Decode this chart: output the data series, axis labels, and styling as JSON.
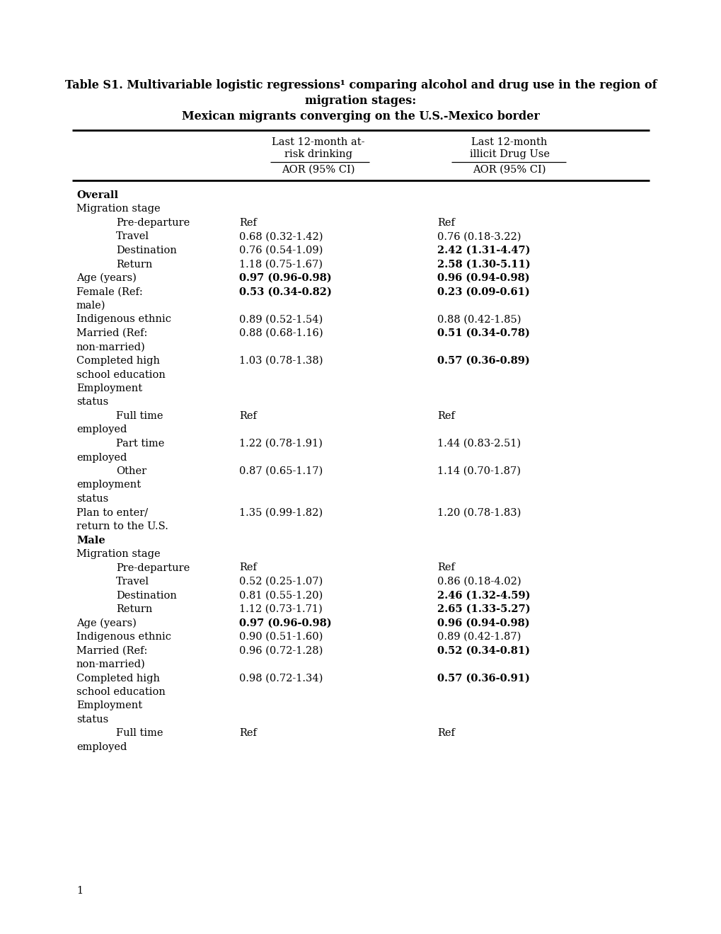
{
  "title_line1": "Table S1. Multivariable logistic regressions¹ comparing alcohol and drug use in the region of",
  "title_line2": "migration stages:",
  "title_line3": "Mexican migrants converging on the U.S.-Mexico border",
  "col_header1_line1": "Last 12-month at-",
  "col_header1_line2": "risk drinking",
  "col_header1_line3": "AOR (95% CI)",
  "col_header2_line1": "Last 12-month",
  "col_header2_line2": "illicit Drug Use",
  "col_header2_line3": "AOR (95% CI)",
  "rows": [
    {
      "label": "Overall",
      "indent": 0,
      "bold": true,
      "col1": "",
      "col1_bold": false,
      "col2": "",
      "col2_bold": false
    },
    {
      "label": "Migration stage",
      "indent": 0,
      "bold": false,
      "col1": "",
      "col1_bold": false,
      "col2": "",
      "col2_bold": false
    },
    {
      "label": "Pre-departure",
      "indent": 2,
      "bold": false,
      "col1": "Ref",
      "col1_bold": false,
      "col2": "Ref",
      "col2_bold": false
    },
    {
      "label": "Travel",
      "indent": 2,
      "bold": false,
      "col1": "0.68 (0.32-1.42)",
      "col1_bold": false,
      "col2": "0.76 (0.18-3.22)",
      "col2_bold": false
    },
    {
      "label": "Destination",
      "indent": 2,
      "bold": false,
      "col1": "0.76 (0.54-1.09)",
      "col1_bold": false,
      "col2": "2.42 (1.31-4.47)",
      "col2_bold": true
    },
    {
      "label": "Return",
      "indent": 2,
      "bold": false,
      "col1": "1.18 (0.75-1.67)",
      "col1_bold": false,
      "col2": "2.58 (1.30-5.11)",
      "col2_bold": true
    },
    {
      "label": "Age (years)",
      "indent": 0,
      "bold": false,
      "col1": "0.97 (0.96-0.98)",
      "col1_bold": true,
      "col2": "0.96 (0.94-0.98)",
      "col2_bold": true
    },
    {
      "label": "Female (Ref:",
      "indent": 0,
      "bold": false,
      "col1": "0.53 (0.34-0.82)",
      "col1_bold": true,
      "col2": "0.23 (0.09-0.61)",
      "col2_bold": true
    },
    {
      "label": "male)",
      "indent": 0,
      "bold": false,
      "col1": "",
      "col1_bold": false,
      "col2": "",
      "col2_bold": false
    },
    {
      "label": "Indigenous ethnic",
      "indent": 0,
      "bold": false,
      "col1": "0.89 (0.52-1.54)",
      "col1_bold": false,
      "col2": "0.88 (0.42-1.85)",
      "col2_bold": false
    },
    {
      "label": "Married (Ref:",
      "indent": 0,
      "bold": false,
      "col1": "0.88 (0.68-1.16)",
      "col1_bold": false,
      "col2": "0.51 (0.34-0.78)",
      "col2_bold": true
    },
    {
      "label": "non-married)",
      "indent": 0,
      "bold": false,
      "col1": "",
      "col1_bold": false,
      "col2": "",
      "col2_bold": false
    },
    {
      "label": "Completed high",
      "indent": 0,
      "bold": false,
      "col1": "1.03 (0.78-1.38)",
      "col1_bold": false,
      "col2": "0.57 (0.36-0.89)",
      "col2_bold": true
    },
    {
      "label": "school education",
      "indent": 0,
      "bold": false,
      "col1": "",
      "col1_bold": false,
      "col2": "",
      "col2_bold": false
    },
    {
      "label": "Employment",
      "indent": 0,
      "bold": false,
      "col1": "",
      "col1_bold": false,
      "col2": "",
      "col2_bold": false
    },
    {
      "label": "status",
      "indent": 0,
      "bold": false,
      "col1": "",
      "col1_bold": false,
      "col2": "",
      "col2_bold": false
    },
    {
      "label": "Full time",
      "indent": 2,
      "bold": false,
      "col1": "Ref",
      "col1_bold": false,
      "col2": "Ref",
      "col2_bold": false
    },
    {
      "label": "employed",
      "indent": 0,
      "bold": false,
      "col1": "",
      "col1_bold": false,
      "col2": "",
      "col2_bold": false
    },
    {
      "label": "Part time",
      "indent": 2,
      "bold": false,
      "col1": "1.22 (0.78-1.91)",
      "col1_bold": false,
      "col2": "1.44 (0.83-2.51)",
      "col2_bold": false
    },
    {
      "label": "employed",
      "indent": 0,
      "bold": false,
      "col1": "",
      "col1_bold": false,
      "col2": "",
      "col2_bold": false
    },
    {
      "label": "Other",
      "indent": 2,
      "bold": false,
      "col1": "0.87 (0.65-1.17)",
      "col1_bold": false,
      "col2": "1.14 (0.70-1.87)",
      "col2_bold": false
    },
    {
      "label": "employment",
      "indent": 0,
      "bold": false,
      "col1": "",
      "col1_bold": false,
      "col2": "",
      "col2_bold": false
    },
    {
      "label": "status",
      "indent": 0,
      "bold": false,
      "col1": "",
      "col1_bold": false,
      "col2": "",
      "col2_bold": false
    },
    {
      "label": "Plan to enter/",
      "indent": 0,
      "bold": false,
      "col1": "1.35 (0.99-1.82)",
      "col1_bold": false,
      "col2": "1.20 (0.78-1.83)",
      "col2_bold": false
    },
    {
      "label": "return to the U.S.",
      "indent": 0,
      "bold": false,
      "col1": "",
      "col1_bold": false,
      "col2": "",
      "col2_bold": false
    },
    {
      "label": "Male",
      "indent": 0,
      "bold": true,
      "col1": "",
      "col1_bold": false,
      "col2": "",
      "col2_bold": false
    },
    {
      "label": "Migration stage",
      "indent": 0,
      "bold": false,
      "col1": "",
      "col1_bold": false,
      "col2": "",
      "col2_bold": false
    },
    {
      "label": "Pre-departure",
      "indent": 2,
      "bold": false,
      "col1": "Ref",
      "col1_bold": false,
      "col2": "Ref",
      "col2_bold": false
    },
    {
      "label": "Travel",
      "indent": 2,
      "bold": false,
      "col1": "0.52 (0.25-1.07)",
      "col1_bold": false,
      "col2": "0.86 (0.18-4.02)",
      "col2_bold": false
    },
    {
      "label": "Destination",
      "indent": 2,
      "bold": false,
      "col1": "0.81 (0.55-1.20)",
      "col1_bold": false,
      "col2": "2.46 (1.32-4.59)",
      "col2_bold": true
    },
    {
      "label": "Return",
      "indent": 2,
      "bold": false,
      "col1": "1.12 (0.73-1.71)",
      "col1_bold": false,
      "col2": "2.65 (1.33-5.27)",
      "col2_bold": true
    },
    {
      "label": "Age (years)",
      "indent": 0,
      "bold": false,
      "col1": "0.97 (0.96-0.98)",
      "col1_bold": true,
      "col2": "0.96 (0.94-0.98)",
      "col2_bold": true
    },
    {
      "label": "Indigenous ethnic",
      "indent": 0,
      "bold": false,
      "col1": "0.90 (0.51-1.60)",
      "col1_bold": false,
      "col2": "0.89 (0.42-1.87)",
      "col2_bold": false
    },
    {
      "label": "Married (Ref:",
      "indent": 0,
      "bold": false,
      "col1": "0.96 (0.72-1.28)",
      "col1_bold": false,
      "col2": "0.52 (0.34-0.81)",
      "col2_bold": true
    },
    {
      "label": "non-married)",
      "indent": 0,
      "bold": false,
      "col1": "",
      "col1_bold": false,
      "col2": "",
      "col2_bold": false
    },
    {
      "label": "Completed high",
      "indent": 0,
      "bold": false,
      "col1": "0.98 (0.72-1.34)",
      "col1_bold": false,
      "col2": "0.57 (0.36-0.91)",
      "col2_bold": true
    },
    {
      "label": "school education",
      "indent": 0,
      "bold": false,
      "col1": "",
      "col1_bold": false,
      "col2": "",
      "col2_bold": false
    },
    {
      "label": "Employment",
      "indent": 0,
      "bold": false,
      "col1": "",
      "col1_bold": false,
      "col2": "",
      "col2_bold": false
    },
    {
      "label": "status",
      "indent": 0,
      "bold": false,
      "col1": "",
      "col1_bold": false,
      "col2": "",
      "col2_bold": false
    },
    {
      "label": "Full time",
      "indent": 2,
      "bold": false,
      "col1": "Ref",
      "col1_bold": false,
      "col2": "Ref",
      "col2_bold": false
    },
    {
      "label": "employed",
      "indent": 0,
      "bold": false,
      "col1": "",
      "col1_bold": false,
      "col2": "",
      "col2_bold": false
    }
  ],
  "bg_color": "#ffffff",
  "text_color": "#000000",
  "font_size": 10.5,
  "title_font_size": 11.5,
  "fig_width": 10.2,
  "fig_height": 13.2,
  "dpi": 100
}
